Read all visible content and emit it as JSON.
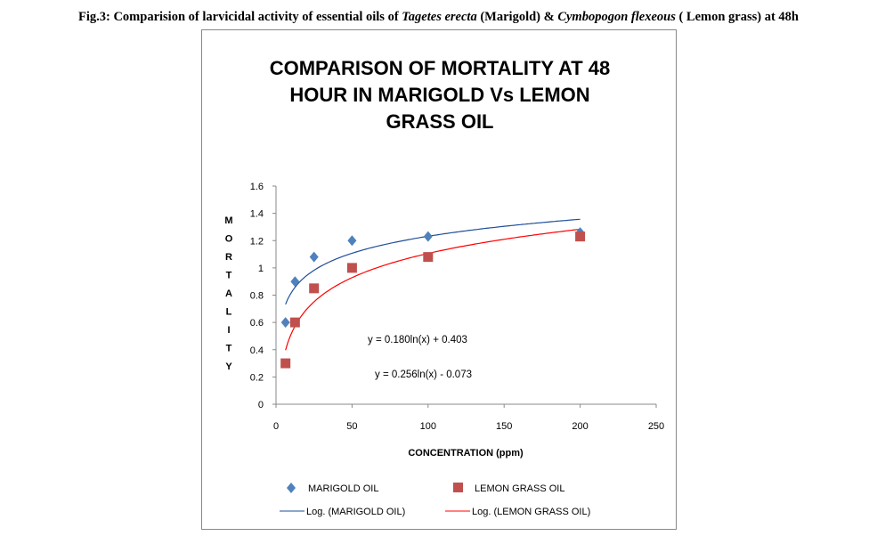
{
  "caption": {
    "prefix": "Fig.3: Comparision of larvicidal activity of essential oils of ",
    "species1": "Tagetes erecta",
    "mid": " (Marigold) & ",
    "species2": "Cymbopogon flexeous",
    "suffix": " ( Lemon grass) at 48h"
  },
  "chart_data": {
    "type": "scatter",
    "title_lines": [
      "COMPARISON OF MORTALITY AT 48",
      "HOUR IN MARIGOLD Vs LEMON",
      "GRASS OIL"
    ],
    "xlabel": "CONCENTRATION (ppm)",
    "ylabel": "MORTALITY",
    "xlim": [
      0,
      250
    ],
    "ylim": [
      0,
      1.6
    ],
    "xticks": [
      0,
      50,
      100,
      150,
      200,
      250
    ],
    "yticks": [
      0,
      0.2,
      0.4,
      0.6,
      0.8,
      1,
      1.2,
      1.4,
      1.6
    ],
    "grid": false,
    "legend_position": "bottom",
    "series": [
      {
        "name": "MARIGOLD OIL",
        "marker": "diamond",
        "color": "#4F81BD",
        "x": [
          6.25,
          12.5,
          25,
          50,
          100,
          200
        ],
        "y": [
          0.6,
          0.9,
          1.08,
          1.2,
          1.23,
          1.26
        ]
      },
      {
        "name": "LEMON GRASS OIL",
        "marker": "square",
        "color": "#C0504D",
        "x": [
          6.25,
          12.5,
          25,
          50,
          100,
          200
        ],
        "y": [
          0.3,
          0.6,
          0.85,
          1.0,
          1.08,
          1.23
        ]
      }
    ],
    "trendlines": [
      {
        "name": "Log. (MARIGOLD OIL)",
        "color": "#1F4E9A",
        "a": 0.18,
        "b": 0.403,
        "equation": "y = 0.180ln(x) + 0.403"
      },
      {
        "name": "Log. (LEMON GRASS OIL)",
        "color": "#FF0000",
        "a": 0.256,
        "b": -0.073,
        "equation": "y = 0.256ln(x) - 0.073"
      }
    ]
  }
}
